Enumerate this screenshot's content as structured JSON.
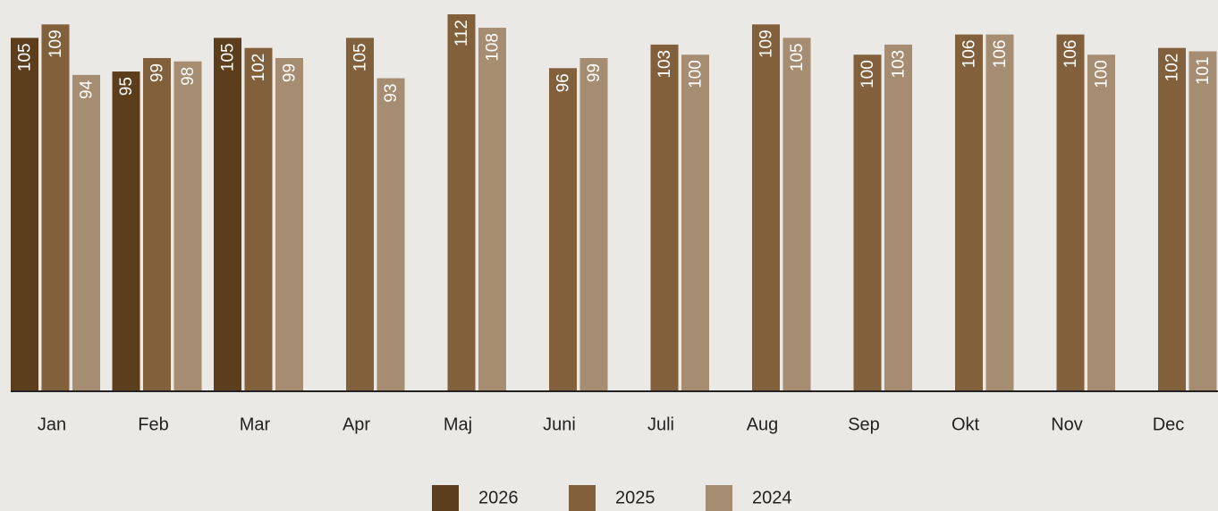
{
  "chart_data": {
    "type": "bar",
    "categories": [
      "Jan",
      "Feb",
      "Mar",
      "Apr",
      "Maj",
      "Juni",
      "Juli",
      "Aug",
      "Sep",
      "Okt",
      "Nov",
      "Dec"
    ],
    "series": [
      {
        "name": "2026",
        "color": "#5c3d1c",
        "values": [
          105,
          95,
          105,
          null,
          null,
          null,
          null,
          null,
          null,
          null,
          null,
          null
        ]
      },
      {
        "name": "2025",
        "color": "#82603c",
        "values": [
          109,
          99,
          102,
          105,
          112,
          96,
          103,
          109,
          100,
          106,
          106,
          102
        ]
      },
      {
        "name": "2024",
        "color": "#a68c70",
        "values": [
          94,
          98,
          99,
          93,
          108,
          99,
          100,
          105,
          103,
          106,
          100,
          101
        ]
      }
    ],
    "ylim": [
      0,
      112
    ],
    "legend": "bottom"
  }
}
